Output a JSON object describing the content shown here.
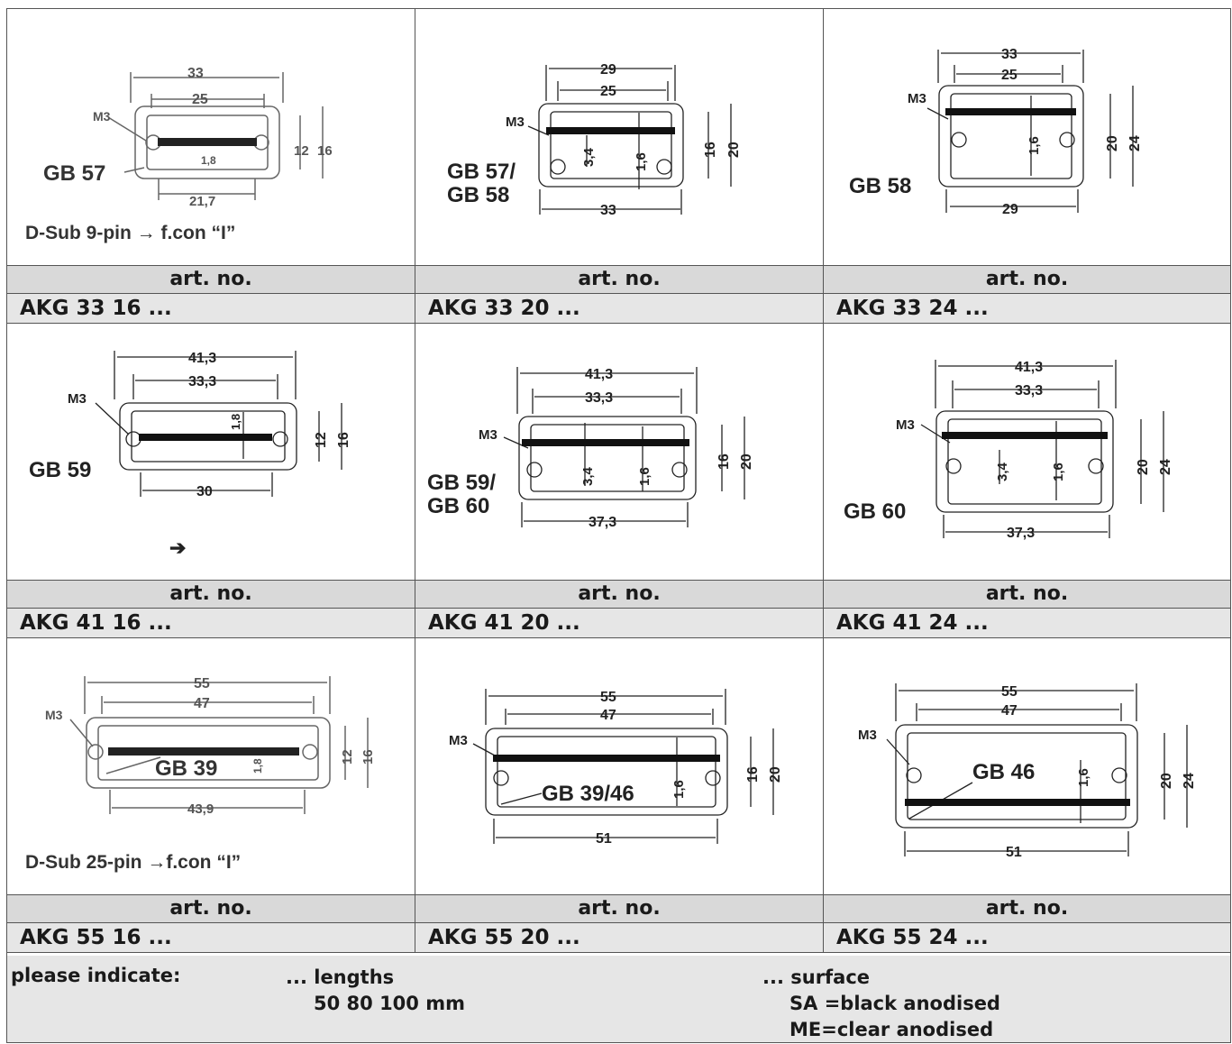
{
  "rows": [
    {
      "cells": [
        {
          "header": "art. no.",
          "code": "AKG 33 16 ...",
          "labels": {
            "w_outer": "33",
            "w_inner": "25",
            "screw": "M3",
            "bar": "1,8",
            "h_inner": "12",
            "h_outer": "16",
            "w_bottom": "21,7",
            "board": "GB 57",
            "note": "D-Sub 9-pin → f.con “I”"
          }
        },
        {
          "header": "art. no.",
          "code": "AKG 33 20 ...",
          "labels": {
            "w_top": "29",
            "w_inner": "25",
            "screw": "M3",
            "d1": "3,4",
            "d2": "1,6",
            "h_inner": "16",
            "h_outer": "20",
            "w_bottom": "33",
            "board1": "GB 57/",
            "board2": "GB 58"
          }
        },
        {
          "header": "art. no.",
          "code": "AKG 33 24 ...",
          "labels": {
            "w_outer": "33",
            "w_inner": "25",
            "screw": "M3",
            "d2": "1,6",
            "h_inner": "20",
            "h_outer": "24",
            "w_bottom": "29",
            "board": "GB 58"
          }
        }
      ]
    },
    {
      "cells": [
        {
          "header": "art. no.",
          "code": "AKG 41 16 ...",
          "labels": {
            "w_outer": "41,3",
            "w_inner": "33,3",
            "screw": "M3",
            "bar": "1,8",
            "h_inner": "12",
            "h_outer": "16",
            "w_bottom": "30",
            "board": "GB 59",
            "arrow": "➔"
          }
        },
        {
          "header": "art. no.",
          "code": "AKG 41 20 ...",
          "labels": {
            "w_outer": "41,3",
            "w_inner": "33,3",
            "screw": "M3",
            "d1": "3,4",
            "d2": "1,6",
            "h_inner": "16",
            "h_outer": "20",
            "w_bottom": "37,3",
            "board1": "GB 59/",
            "board2": "GB 60"
          }
        },
        {
          "header": "art. no.",
          "code": "AKG 41 24 ...",
          "labels": {
            "w_outer": "41,3",
            "w_inner": "33,3",
            "screw": "M3",
            "d1": "3,4",
            "d2": "1,6",
            "h_inner": "20",
            "h_outer": "24",
            "w_bottom": "37,3",
            "board": "GB 60"
          }
        }
      ]
    },
    {
      "cells": [
        {
          "header": "art. no.",
          "code": "AKG 55 16 ...",
          "labels": {
            "w_outer": "55",
            "w_inner": "47",
            "screw": "M3",
            "bar": "1,8",
            "h_inner": "12",
            "h_outer": "16",
            "w_bottom": "43,9",
            "board": "GB 39",
            "note": "D-Sub 25-pin →f.con “I”"
          }
        },
        {
          "header": "art. no.",
          "code": "AKG 55 20 ...",
          "labels": {
            "w_outer": "55",
            "w_inner": "47",
            "screw": "M3",
            "d2": "1,6",
            "h_inner": "16",
            "h_outer": "20",
            "w_bottom": "51",
            "board": "GB 39/46"
          }
        },
        {
          "header": "art. no.",
          "code": "AKG 55 24 ...",
          "labels": {
            "w_outer": "55",
            "w_inner": "47",
            "screw": "M3",
            "d2": "1,6",
            "h_inner": "20",
            "h_outer": "24",
            "w_bottom": "51",
            "board": "GB 46"
          }
        }
      ]
    }
  ],
  "footer": {
    "label": "please indicate:",
    "lengths_title": "... lengths",
    "lengths_values": "50  80  100 mm",
    "surface_title": "... surface",
    "surface_sa": "SA =black anodised",
    "surface_me": "ME=clear anodised"
  }
}
